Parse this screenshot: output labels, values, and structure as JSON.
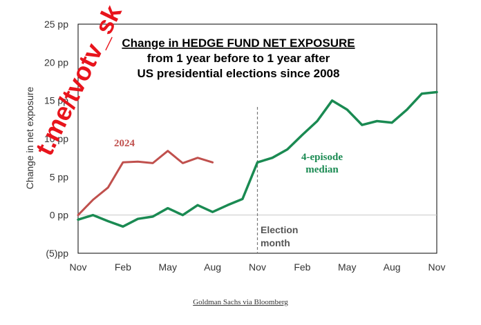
{
  "chart_data": {
    "type": "line",
    "title_lines": [
      "Change in HEDGE FUND NET EXPOSURE",
      "from 1 year before to 1 year after",
      "US presidential elections since 2008"
    ],
    "ylabel": "Change in net exposure",
    "ylim": [
      -5,
      25
    ],
    "y_ticks": [
      {
        "value": 25,
        "label": "25 pp"
      },
      {
        "value": 20,
        "label": "20 pp"
      },
      {
        "value": 15,
        "label": "15 pp"
      },
      {
        "value": 10,
        "label": "10 pp"
      },
      {
        "value": 5,
        "label": "5 pp"
      },
      {
        "value": 0,
        "label": "0 pp"
      },
      {
        "value": -5,
        "label": "(5)pp"
      }
    ],
    "xlim": [
      0,
      24
    ],
    "x_ticks": [
      {
        "value": 0,
        "label": "Nov"
      },
      {
        "value": 3,
        "label": "Feb"
      },
      {
        "value": 6,
        "label": "May"
      },
      {
        "value": 9,
        "label": "Aug"
      },
      {
        "value": 12,
        "label": "Nov"
      },
      {
        "value": 15,
        "label": "Feb"
      },
      {
        "value": 18,
        "label": "May"
      },
      {
        "value": 21,
        "label": "Aug"
      },
      {
        "value": 24,
        "label": "Nov"
      }
    ],
    "election_month": {
      "x": 12,
      "label_lines": [
        "Election",
        "month"
      ]
    },
    "series": [
      {
        "name": "2024",
        "color": "#c0504d",
        "label_lines": [
          "2024"
        ],
        "x": [
          0,
          1,
          2,
          3,
          4,
          5,
          6,
          7,
          8,
          9
        ],
        "values": [
          0,
          2,
          3.6,
          6.9,
          7.0,
          6.8,
          8.4,
          6.8,
          7.5,
          6.9
        ]
      },
      {
        "name": "4-episode median",
        "color": "#1a8a52",
        "label_lines": [
          "4-episode",
          "median"
        ],
        "x": [
          0,
          1,
          2,
          3,
          4,
          5,
          6,
          7,
          8,
          9,
          10,
          11,
          12,
          13,
          14,
          15,
          16,
          17,
          18,
          19,
          20,
          21,
          22,
          23,
          24
        ],
        "values": [
          -0.6,
          0,
          -0.8,
          -1.5,
          -0.5,
          -0.2,
          0.9,
          0,
          1.3,
          0.4,
          1.3,
          2.1,
          6.9,
          7.5,
          8.6,
          10.5,
          12.3,
          15.0,
          13.8,
          11.8,
          12.3,
          12.1,
          13.8,
          15.9,
          16.1
        ]
      }
    ]
  },
  "watermark": "t.me/tvotv_sk",
  "source": "Goldman Sachs via Bloomberg"
}
